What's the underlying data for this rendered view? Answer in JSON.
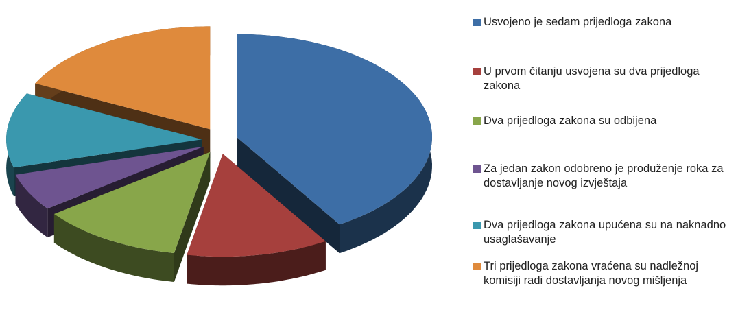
{
  "chart_data": {
    "type": "pie",
    "categories": [
      "Usvojeno je sedam prijedloga zakona",
      "U prvom čitanju usvojena su dva prijedloga zakona",
      "Dva prijedloga zakona su odbijena",
      "Za jedan zakon odobreno je produženje roka za dostavljanje novog izvještaja",
      "Dva prijedloga zakona upućena su na naknadno usaglašavanje",
      "Tri prijedloga zakona vraćena su nadležnoj komisiji radi dostavljanja novog mišljenja"
    ],
    "values": [
      7,
      2,
      2,
      1,
      2,
      3
    ],
    "colors": [
      "#3d6ea6",
      "#a6403d",
      "#88a64a",
      "#6e5490",
      "#3a98ae",
      "#df8a3c"
    ],
    "legend": "right"
  }
}
